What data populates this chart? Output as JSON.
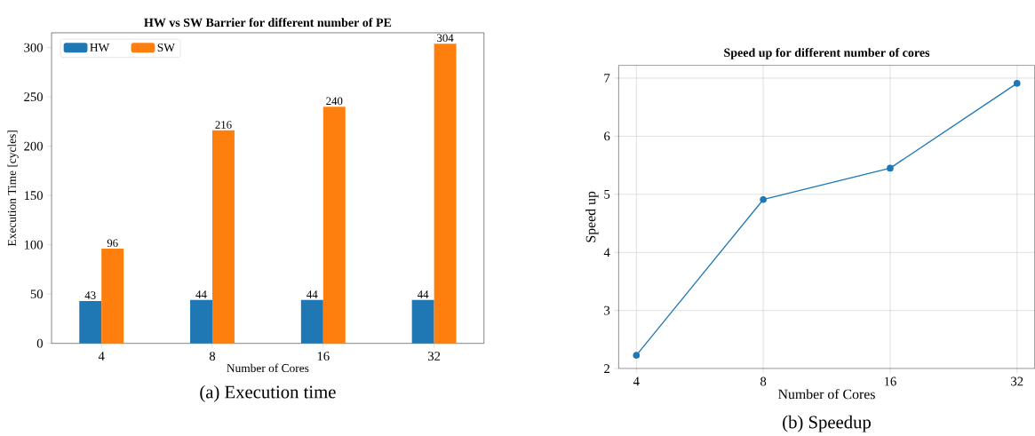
{
  "chart_data": [
    {
      "type": "bar",
      "title": "**HW vs SW Barrier for different number of PE**",
      "xlabel": "Number of Cores",
      "ylabel": "Execution Time [cycles]",
      "categories": [
        "4",
        "8",
        "16",
        "32"
      ],
      "series": [
        {
          "name": "HW",
          "color": "#1f77b4",
          "values": [
            43,
            44,
            44,
            44
          ]
        },
        {
          "name": "SW",
          "color": "#ff7f0e",
          "values": [
            96,
            216,
            240,
            304
          ]
        }
      ],
      "ylim": [
        0,
        315
      ],
      "yticks": [
        0,
        50,
        100,
        150,
        200,
        250,
        300
      ],
      "data_labels": true,
      "legend": "top left",
      "grid": false,
      "annotations": [
        "(a) Execution time"
      ]
    },
    {
      "type": "line",
      "title": "**Speed up for different number of cores**",
      "xlabel": "Number of Cores",
      "ylabel": "Speed up",
      "categories": [
        "4",
        "8",
        "16",
        "32"
      ],
      "series": [
        {
          "color": "#1f77b4",
          "values": [
            2.23,
            4.91,
            5.45,
            6.91
          ]
        }
      ],
      "ylim": [
        2,
        7.22
      ],
      "yticks": [
        2,
        3,
        4,
        5,
        6,
        7
      ],
      "grid": true,
      "marker": "circle",
      "line_style": "solid",
      "legend": false,
      "annotations": [
        "(b) Speedup"
      ]
    }
  ]
}
